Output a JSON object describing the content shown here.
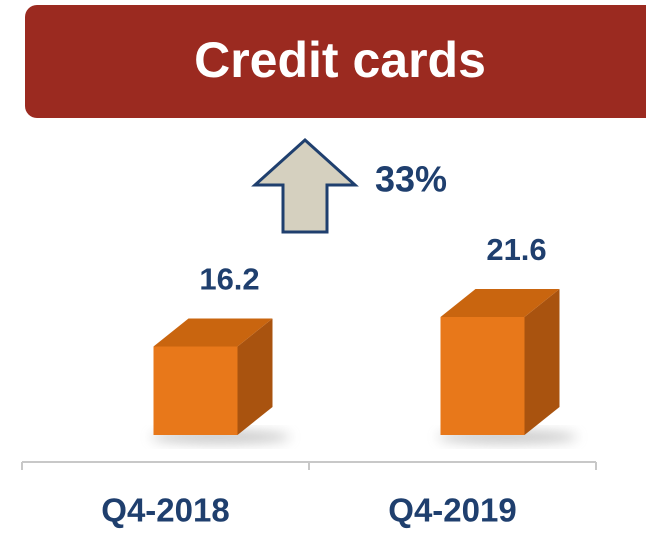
{
  "chart_data": {
    "type": "bar3d",
    "title": "Credit cards",
    "categories": [
      "Q4-2018",
      "Q4-2019"
    ],
    "series": [
      {
        "name": null,
        "color": "#e8781a",
        "values": [
          16.2,
          21.6
        ]
      }
    ],
    "annotations": [
      "33%"
    ]
  }
}
